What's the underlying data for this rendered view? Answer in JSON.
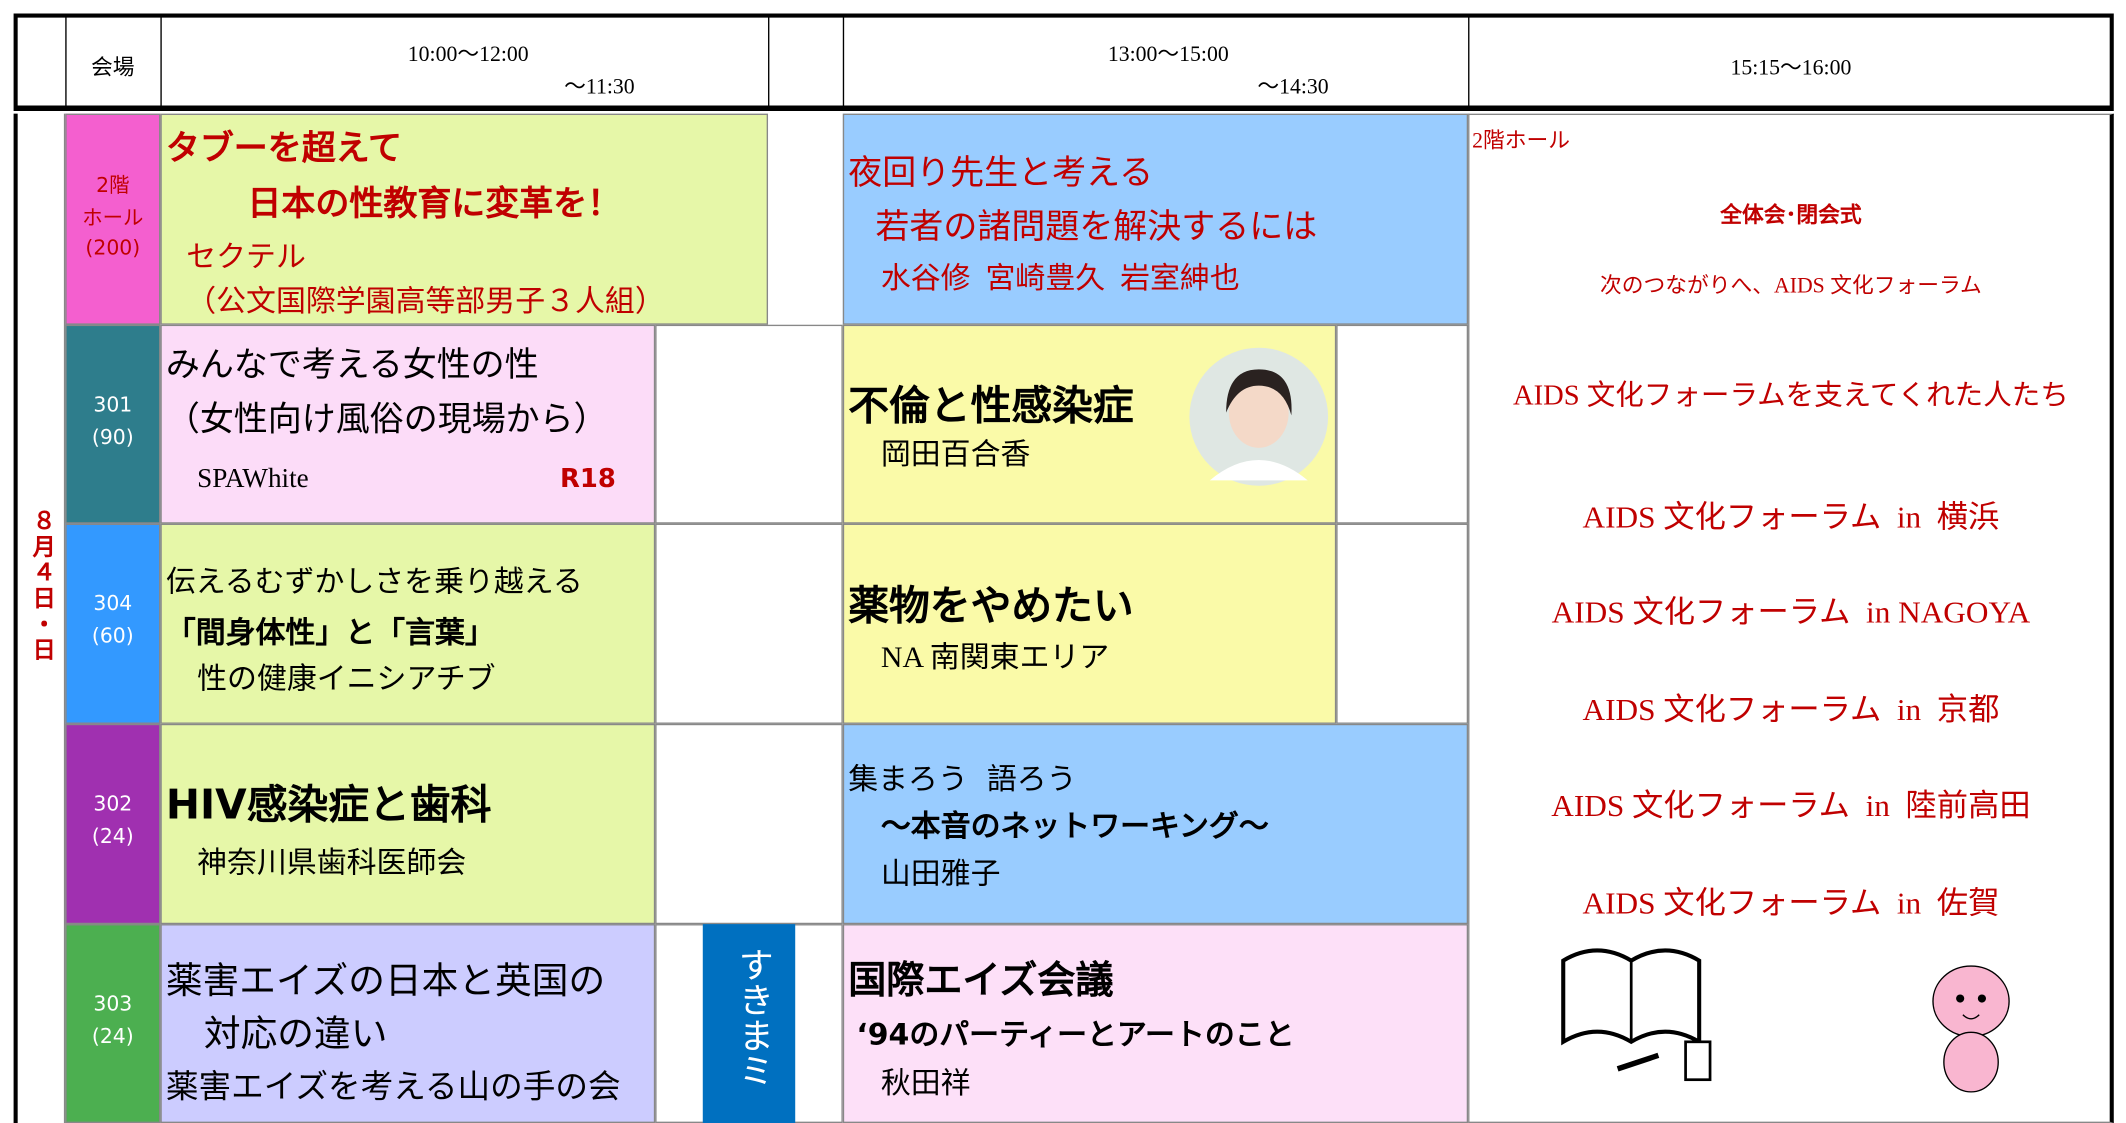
{
  "header": {
    "venue": "会場",
    "slot1": "10:00〜12:00",
    "slot1_end": "〜11:30",
    "slot2": "13:00〜15:00",
    "slot2_end": "〜14:30",
    "slot3": "15:15〜16:00"
  },
  "date": "８月４日・日",
  "rows": [
    {
      "room": "2階",
      "room2": "ホール",
      "capacity": "(200)",
      "morning": {
        "lines": [
          "タブーを超えて",
          "日本の性教育に変革を！",
          "セクテル",
          "（公文国際学園高等部男子３人組）"
        ]
      },
      "afternoon": {
        "lines": [
          "夜回り先生と考える",
          "若者の諸問題を解決するには",
          "水谷修  宮崎豊久  岩室紳也"
        ]
      }
    },
    {
      "room": "301",
      "capacity": "(90)",
      "morning": {
        "lines": [
          "みんなで考える女性の性",
          "（女性向け風俗の現場から）",
          "SPAWhite",
          "R18"
        ]
      },
      "afternoon": {
        "lines": [
          "不倫と性感染症",
          "岡田百合香"
        ]
      }
    },
    {
      "room": "304",
      "capacity": "(60)",
      "morning": {
        "lines": [
          "伝えるむずかしさを乗り越える",
          "「間身体性」と「言葉」",
          "性の健康イニシアチブ"
        ]
      },
      "afternoon": {
        "lines": [
          "薬物をやめたい",
          "NA 南関東エリア"
        ]
      }
    },
    {
      "room": "302",
      "capacity": "(24)",
      "morning": {
        "lines": [
          "HIV感染症と歯科",
          "神奈川県歯科医師会"
        ]
      },
      "afternoon": {
        "lines": [
          "集まろう  語ろう",
          "〜本音のネットワーキング〜",
          "山田雅子"
        ]
      }
    },
    {
      "room": "303",
      "capacity": "(24)",
      "morning": {
        "lines": [
          "薬害エイズの日本と英国の",
          "対応の違い",
          "薬害エイズを考える山の手の会"
        ]
      },
      "afternoon": {
        "lines": [
          "国際エイズ会議",
          "‘94のパーティーとアートのこと",
          "秋田祥"
        ]
      }
    }
  ],
  "sukima": "すきまミ",
  "closing": {
    "venue": "2階ホール",
    "title": "全体会･閉会式",
    "subtitle": "次のつながりへ、AIDS 文化フォーラム",
    "items": [
      "AIDS 文化フォーラムを支えてくれた人たち",
      "AIDS 文化フォーラム  in  横浜",
      "AIDS 文化フォーラム  in NAGOYA",
      "AIDS 文化フォーラム  in  京都",
      "AIDS 文化フォーラム  in  陸前高田",
      "AIDS 文化フォーラム  in  佐賀"
    ]
  }
}
